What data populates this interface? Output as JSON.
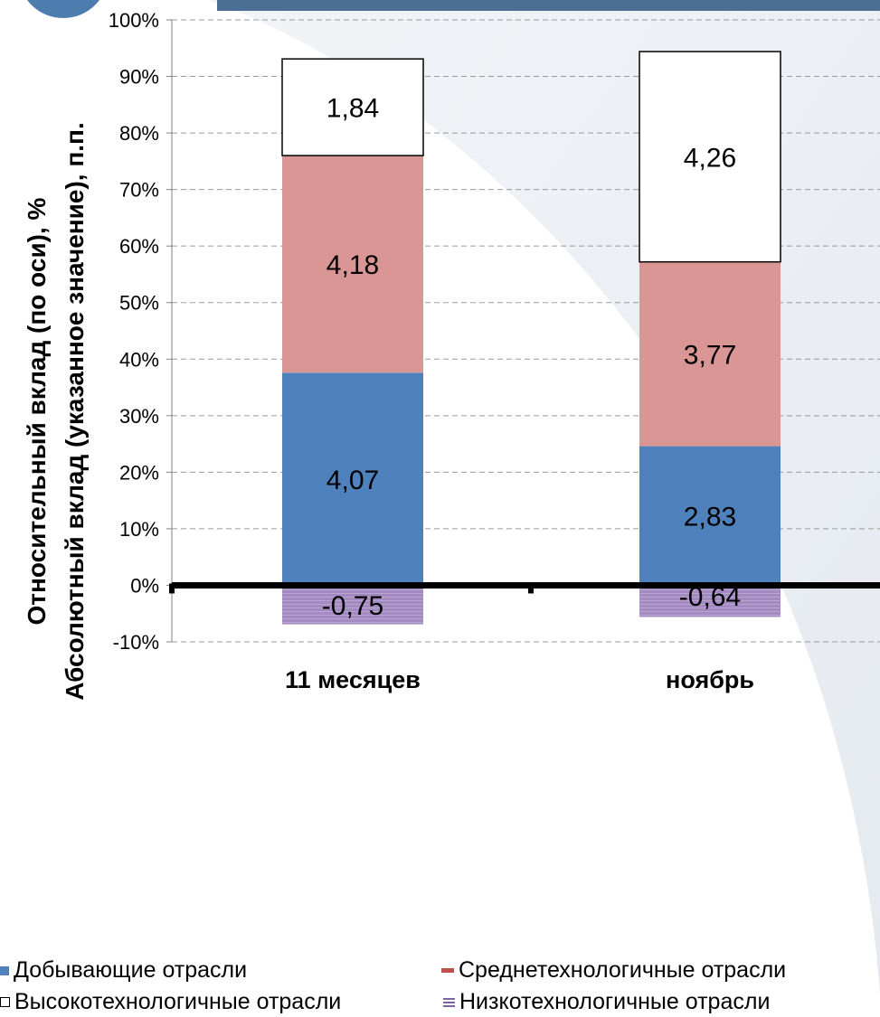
{
  "chart_data": {
    "type": "bar",
    "stacked": true,
    "categories": [
      "11 месяцев",
      "ноябрь"
    ],
    "ylabel_line1": "Относительный вклад (по оси), %",
    "ylabel_line2": "Абсолютный вклад (указанное значение), п.п.",
    "ylim": [
      -10,
      100
    ],
    "yticks": [
      "-10%",
      "0%",
      "10%",
      "20%",
      "30%",
      "40%",
      "50%",
      "60%",
      "70%",
      "80%",
      "90%",
      "100%"
    ],
    "grid": true,
    "legend_position": "bottom",
    "series": [
      {
        "name": "Добывающие отрасли",
        "color": "#4F81BD",
        "percent": [
          37.6,
          24.6
        ],
        "labels": [
          "4,07",
          "2,83"
        ]
      },
      {
        "name": "Среднетехнологичные отрасли",
        "color": "#D99694",
        "percent": [
          38.4,
          32.6
        ],
        "labels": [
          "4,18",
          "3,77"
        ]
      },
      {
        "name": "Высокотехнологичные отрасли",
        "color": "#FFFFFF",
        "percent": [
          17.1,
          37.2
        ],
        "labels": [
          "1,84",
          "4,26"
        ]
      },
      {
        "name": "Низкотехнологичные отрасли",
        "color": "#A38BC2",
        "percent": [
          -6.9,
          -5.6
        ],
        "labels": [
          "-0,75",
          "-0,64"
        ]
      }
    ]
  }
}
